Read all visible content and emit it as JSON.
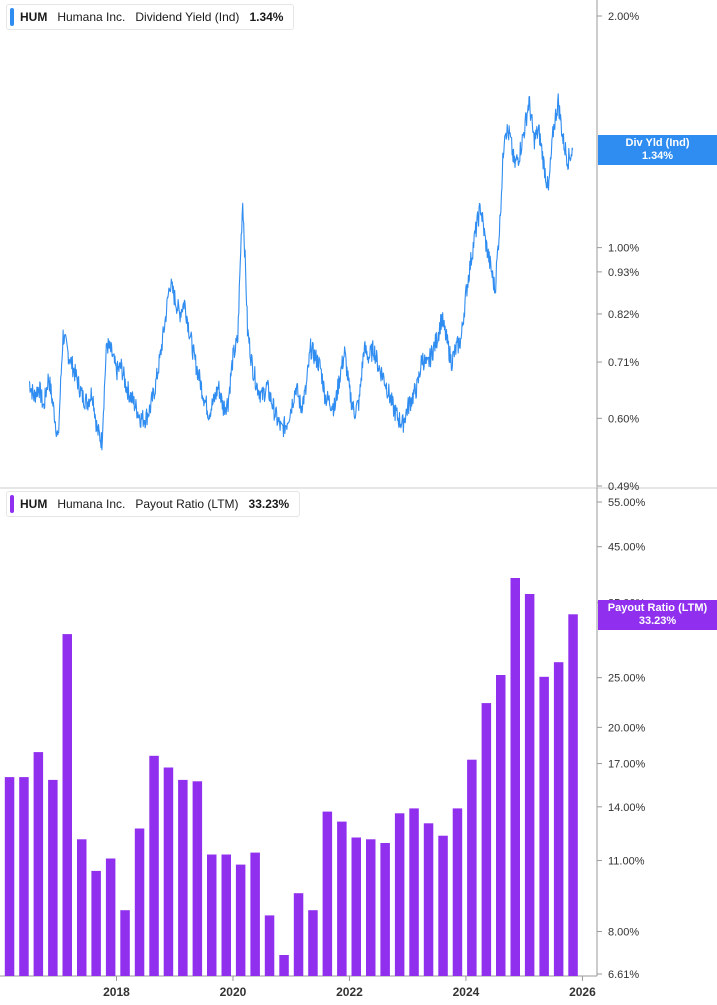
{
  "colors": {
    "yield": "#2f8cf0",
    "payout": "#9030ee",
    "axis": "#9a9a9a",
    "text": "#333333"
  },
  "top_legend": {
    "ticker": "HUM",
    "company": "Humana Inc.",
    "metric": "Dividend Yield (Ind)",
    "value": "1.34%"
  },
  "bottom_legend": {
    "ticker": "HUM",
    "company": "Humana Inc.",
    "metric": "Payout Ratio (LTM)",
    "value": "33.23%"
  },
  "top_tag": {
    "label": "Div Yld (Ind)",
    "value": "1.34%"
  },
  "bottom_tag": {
    "label": "Payout Ratio (LTM)",
    "value": "33.23%"
  },
  "chart_data": [
    {
      "type": "line",
      "series_name": "Dividend Yield (Ind)",
      "y_scale": "log",
      "ylim": [
        0.49,
        2.0
      ],
      "y_ticks": [
        {
          "label": "2.00%",
          "v": 2.0
        },
        {
          "label": "1.00%",
          "v": 1.0
        },
        {
          "label": "0.93%",
          "v": 0.93
        },
        {
          "label": "0.82%",
          "v": 0.82
        },
        {
          "label": "0.71%",
          "v": 0.71
        },
        {
          "label": "0.60%",
          "v": 0.6
        },
        {
          "label": "0.49%",
          "v": 0.49
        }
      ],
      "xlim": [
        "2016-01",
        "2026-04"
      ],
      "points": [
        [
          "2016-07",
          0.67
        ],
        [
          "2016-08",
          0.64
        ],
        [
          "2016-09",
          0.66
        ],
        [
          "2016-10",
          0.62
        ],
        [
          "2016-11",
          0.68
        ],
        [
          "2016-12",
          0.62
        ],
        [
          "2017-01",
          0.56
        ],
        [
          "2017-02",
          0.77
        ],
        [
          "2017-03",
          0.73
        ],
        [
          "2017-04",
          0.7
        ],
        [
          "2017-05",
          0.67
        ],
        [
          "2017-06",
          0.64
        ],
        [
          "2017-07",
          0.63
        ],
        [
          "2017-08",
          0.65
        ],
        [
          "2017-09",
          0.58
        ],
        [
          "2017-10",
          0.56
        ],
        [
          "2017-11",
          0.75
        ],
        [
          "2017-12",
          0.73
        ],
        [
          "2018-01",
          0.69
        ],
        [
          "2018-02",
          0.7
        ],
        [
          "2018-03",
          0.66
        ],
        [
          "2018-04",
          0.64
        ],
        [
          "2018-05",
          0.62
        ],
        [
          "2018-06",
          0.6
        ],
        [
          "2018-07",
          0.6
        ],
        [
          "2018-08",
          0.62
        ],
        [
          "2018-09",
          0.66
        ],
        [
          "2018-10",
          0.72
        ],
        [
          "2018-11",
          0.8
        ],
        [
          "2018-12",
          0.9
        ],
        [
          "2019-01",
          0.86
        ],
        [
          "2019-02",
          0.82
        ],
        [
          "2019-03",
          0.85
        ],
        [
          "2019-04",
          0.78
        ],
        [
          "2019-05",
          0.72
        ],
        [
          "2019-06",
          0.68
        ],
        [
          "2019-07",
          0.64
        ],
        [
          "2019-08",
          0.61
        ],
        [
          "2019-09",
          0.63
        ],
        [
          "2019-10",
          0.66
        ],
        [
          "2019-11",
          0.62
        ],
        [
          "2019-12",
          0.63
        ],
        [
          "2020-01",
          0.72
        ],
        [
          "2020-02",
          0.76
        ],
        [
          "2020-03",
          1.15
        ],
        [
          "2020-04",
          0.78
        ],
        [
          "2020-05",
          0.7
        ],
        [
          "2020-06",
          0.66
        ],
        [
          "2020-07",
          0.64
        ],
        [
          "2020-08",
          0.66
        ],
        [
          "2020-09",
          0.63
        ],
        [
          "2020-10",
          0.6
        ],
        [
          "2020-11",
          0.58
        ],
        [
          "2020-12",
          0.59
        ],
        [
          "2021-01",
          0.62
        ],
        [
          "2021-02",
          0.66
        ],
        [
          "2021-03",
          0.62
        ],
        [
          "2021-04",
          0.65
        ],
        [
          "2021-05",
          0.74
        ],
        [
          "2021-06",
          0.72
        ],
        [
          "2021-07",
          0.7
        ],
        [
          "2021-08",
          0.64
        ],
        [
          "2021-09",
          0.63
        ],
        [
          "2021-10",
          0.62
        ],
        [
          "2021-11",
          0.68
        ],
        [
          "2021-12",
          0.73
        ],
        [
          "2022-01",
          0.65
        ],
        [
          "2022-02",
          0.61
        ],
        [
          "2022-03",
          0.63
        ],
        [
          "2022-04",
          0.74
        ],
        [
          "2022-05",
          0.72
        ],
        [
          "2022-06",
          0.74
        ],
        [
          "2022-07",
          0.7
        ],
        [
          "2022-08",
          0.68
        ],
        [
          "2022-09",
          0.65
        ],
        [
          "2022-10",
          0.62
        ],
        [
          "2022-11",
          0.6
        ],
        [
          "2022-12",
          0.59
        ],
        [
          "2023-01",
          0.62
        ],
        [
          "2023-02",
          0.64
        ],
        [
          "2023-03",
          0.66
        ],
        [
          "2023-04",
          0.72
        ],
        [
          "2023-05",
          0.7
        ],
        [
          "2023-06",
          0.73
        ],
        [
          "2023-07",
          0.76
        ],
        [
          "2023-08",
          0.81
        ],
        [
          "2023-09",
          0.76
        ],
        [
          "2023-10",
          0.71
        ],
        [
          "2023-11",
          0.74
        ],
        [
          "2023-12",
          0.76
        ],
        [
          "2024-01",
          0.87
        ],
        [
          "2024-02",
          0.96
        ],
        [
          "2024-03",
          1.05
        ],
        [
          "2024-04",
          1.13
        ],
        [
          "2024-05",
          1.02
        ],
        [
          "2024-06",
          0.95
        ],
        [
          "2024-07",
          0.88
        ],
        [
          "2024-08",
          1.08
        ],
        [
          "2024-09",
          1.43
        ],
        [
          "2024-10",
          1.4
        ],
        [
          "2024-11",
          1.28
        ],
        [
          "2024-12",
          1.32
        ],
        [
          "2025-01",
          1.42
        ],
        [
          "2025-02",
          1.55
        ],
        [
          "2025-03",
          1.38
        ],
        [
          "2025-04",
          1.42
        ],
        [
          "2025-05",
          1.29
        ],
        [
          "2025-06",
          1.18
        ],
        [
          "2025-07",
          1.42
        ],
        [
          "2025-08",
          1.55
        ],
        [
          "2025-09",
          1.38
        ],
        [
          "2025-10",
          1.3
        ],
        [
          "2025-11",
          1.34
        ]
      ]
    },
    {
      "type": "bar",
      "series_name": "Payout Ratio (LTM)",
      "y_scale": "log",
      "ylim": [
        6.61,
        55.0
      ],
      "y_ticks": [
        {
          "label": "55.00%",
          "v": 55.0
        },
        {
          "label": "45.00%",
          "v": 45.0
        },
        {
          "label": "35.00%",
          "v": 35.0
        },
        {
          "label": "25.00%",
          "v": 25.0
        },
        {
          "label": "20.00%",
          "v": 20.0
        },
        {
          "label": "17.00%",
          "v": 17.0
        },
        {
          "label": "14.00%",
          "v": 14.0
        },
        {
          "label": "11.00%",
          "v": 11.0
        },
        {
          "label": "8.00%",
          "v": 8.0
        },
        {
          "label": "6.61%",
          "v": 6.61
        }
      ],
      "x_ticks": [
        "2018",
        "2020",
        "2022",
        "2024",
        "2026"
      ],
      "values": [
        16.0,
        16.0,
        17.9,
        15.8,
        30.4,
        12.1,
        10.5,
        11.1,
        8.8,
        12.7,
        17.6,
        16.7,
        15.8,
        15.7,
        11.3,
        11.3,
        10.8,
        11.4,
        8.6,
        7.2,
        9.5,
        8.8,
        13.7,
        13.1,
        12.2,
        12.1,
        11.9,
        13.6,
        13.9,
        13.0,
        12.3,
        13.9,
        17.3,
        22.3,
        25.3,
        39.1,
        36.4,
        25.1,
        26.8,
        33.23
      ]
    }
  ]
}
